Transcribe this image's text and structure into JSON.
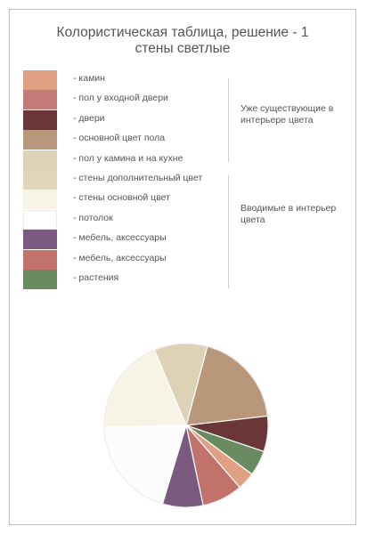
{
  "chart_data": {
    "type": "pie",
    "title_line1": "Колористическая таблица, решение - 1",
    "title_line2": "стены светлые",
    "legend": [
      {
        "label": "- камин",
        "color": "#e0a084"
      },
      {
        "label": "- пол у входной двери",
        "color": "#c47a76"
      },
      {
        "label": "- двери",
        "color": "#6a3638"
      },
      {
        "label": "- основной цвет пола",
        "color": "#b8977a"
      },
      {
        "label": "- пол у камина и на кухне",
        "color": "#ddd1b6"
      },
      {
        "label": "- стены дополнительный цвет",
        "color": "#e0d6bb"
      },
      {
        "label": "- стены основной цвет",
        "color": "#f7f3e5"
      },
      {
        "label": "- потолок",
        "color": "#ffffff"
      },
      {
        "label": "- мебель, аксессуары",
        "color": "#7b5a80"
      },
      {
        "label": "- мебель, аксессуары",
        "color": "#c0726b"
      },
      {
        "label": "- растения",
        "color": "#6a8a62"
      }
    ],
    "groups": [
      {
        "label": "Уже существующие в интерьере цвета"
      },
      {
        "label": "Вводимые в интерьер цвета"
      }
    ],
    "slices": [
      {
        "name": "основной цвет пола",
        "value": 19,
        "color": "#b8977a"
      },
      {
        "name": "двери",
        "value": 7,
        "color": "#6a3638"
      },
      {
        "name": "растения",
        "value": 5,
        "color": "#6a8a62"
      },
      {
        "name": "камин",
        "value": 3.5,
        "color": "#e0a084"
      },
      {
        "name": "мебель, аксессуары",
        "value": 8,
        "color": "#c0726b"
      },
      {
        "name": "мебель, аксессуары",
        "value": 8,
        "color": "#7b5a80"
      },
      {
        "name": "потолок",
        "value": 20,
        "color": "#fcfcfc"
      },
      {
        "name": "стены основной цвет",
        "value": 19,
        "color": "#f7f3e5"
      },
      {
        "name": "стены дополнительный цвет",
        "value": 10.5,
        "color": "#ddd1b6"
      }
    ]
  }
}
